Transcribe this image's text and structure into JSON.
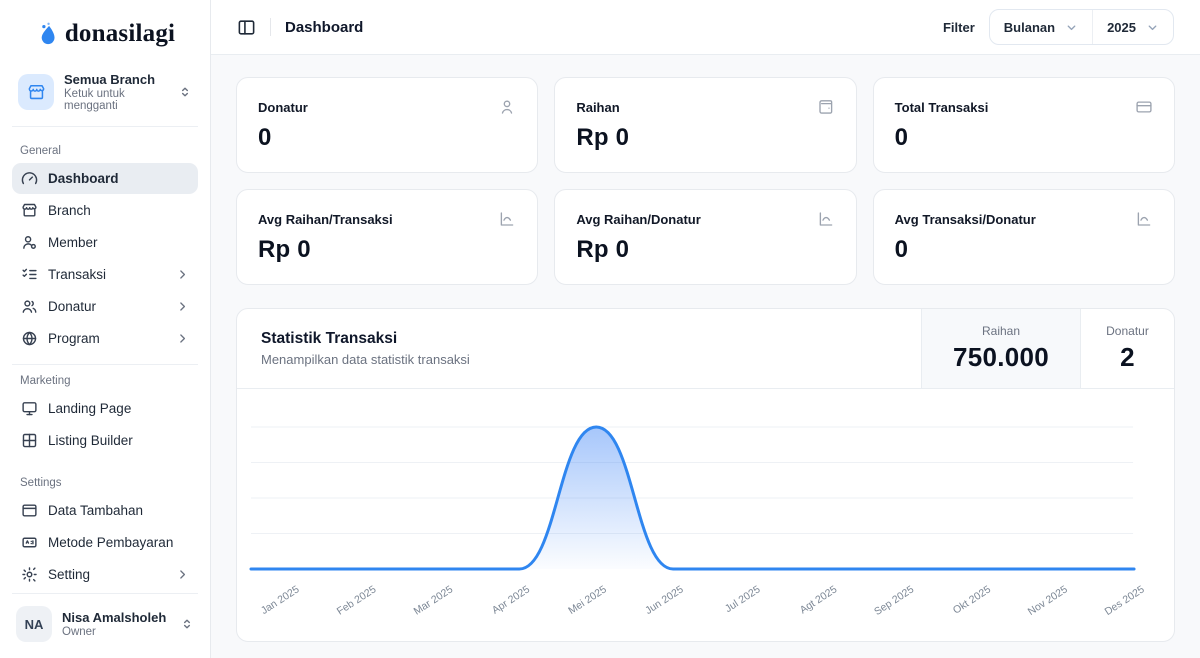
{
  "brand": {
    "name": "donasilagi",
    "accent": "#2f86f0"
  },
  "sidebar": {
    "branch": {
      "title": "Semua Branch",
      "subtitle": "Ketuk untuk mengganti"
    },
    "sections": {
      "general": {
        "label": "General",
        "items": {
          "dashboard": "Dashboard",
          "branch": "Branch",
          "member": "Member",
          "transaksi": "Transaksi",
          "donatur": "Donatur",
          "program": "Program"
        }
      },
      "marketing": {
        "label": "Marketing",
        "items": {
          "landing": "Landing Page",
          "listing": "Listing Builder"
        }
      },
      "settings": {
        "label": "Settings",
        "items": {
          "data_tambahan": "Data Tambahan",
          "metode_pembayaran": "Metode Pembayaran",
          "setting": "Setting"
        }
      }
    },
    "user": {
      "initials": "NA",
      "name": "Nisa Amalsholeh",
      "role": "Owner"
    }
  },
  "header": {
    "title": "Dashboard",
    "filter_label": "Filter",
    "period_value": "Bulanan",
    "year_value": "2025"
  },
  "stats": {
    "0": {
      "label": "Donatur",
      "value": "0"
    },
    "1": {
      "label": "Raihan",
      "value": "Rp 0"
    },
    "2": {
      "label": "Total Transaksi",
      "value": "0"
    },
    "3": {
      "label": "Avg Raihan/Transaksi",
      "value": "Rp 0"
    },
    "4": {
      "label": "Avg Raihan/Donatur",
      "value": "Rp 0"
    },
    "5": {
      "label": "Avg Transaksi/Donatur",
      "value": "0"
    }
  },
  "statistics": {
    "title": "Statistik Transaksi",
    "subtitle": "Menampilkan data statistik transaksi",
    "tabs": {
      "raihan": {
        "label": "Raihan",
        "value": "750.000",
        "active": true
      },
      "donatur": {
        "label": "Donatur",
        "value": "2",
        "active": false
      }
    }
  },
  "chart_data": {
    "type": "area",
    "title": "Statistik Transaksi",
    "categories": [
      "Jan 2025",
      "Feb 2025",
      "Mar 2025",
      "Apr 2025",
      "Mei 2025",
      "Jun 2025",
      "Jul 2025",
      "Agt 2025",
      "Sep 2025",
      "Okt 2025",
      "Nov 2025",
      "Des 2025"
    ],
    "series": [
      {
        "name": "Raihan",
        "values": [
          0,
          0,
          0,
          0,
          750000,
          0,
          0,
          0,
          0,
          0,
          0,
          0
        ]
      }
    ],
    "xlabel": "",
    "ylabel": "",
    "ylim": [
      0,
      800000
    ],
    "grid": true,
    "legend": "none",
    "line_color": "#2f86f0",
    "fill_top_color": "rgba(59,130,246,0.45)",
    "fill_bottom_color": "rgba(59,130,246,0.02)",
    "grid_color": "#eef1f5",
    "tick_color": "#7c8795"
  }
}
